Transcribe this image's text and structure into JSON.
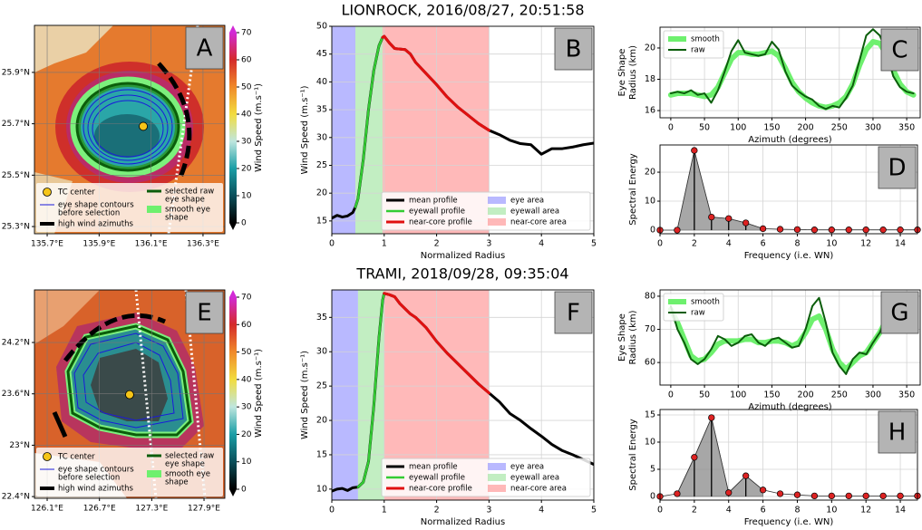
{
  "chart_data": [
    {
      "type": "map",
      "panel_label": "A",
      "xlim": [
        135.651,
        136.384
      ],
      "ylim": [
        25.272,
        26.083
      ],
      "xticks": [
        {
          "value": 135.7,
          "label": "135.7°E"
        },
        {
          "value": 135.9,
          "label": "135.9°E"
        },
        {
          "value": 136.1,
          "label": "136.1°E"
        },
        {
          "value": 136.3,
          "label": "136.3°E"
        }
      ],
      "yticks": [
        {
          "value": 25.3,
          "label": "25.3°N"
        },
        {
          "value": 25.5,
          "label": "25.5°N"
        },
        {
          "value": 25.7,
          "label": "25.7°N"
        },
        {
          "value": 25.9,
          "label": "25.9°N"
        }
      ],
      "grid": true,
      "tc_center": [
        136.07,
        25.69
      ],
      "colorbar": {
        "label": "Wind Speed (m.s⁻¹)",
        "lim": [
          0,
          70
        ],
        "ticks": [
          0,
          10,
          20,
          30,
          40,
          50,
          60,
          70
        ],
        "colors": [
          "#000000",
          "#0b4f5a",
          "#1a9ea6",
          "#bfe6de",
          "#f2dc3e",
          "#f08a2a",
          "#d42a2a",
          "#d22ad6"
        ]
      },
      "legend": [
        {
          "lines": [
            "TC center"
          ],
          "symbol": "circle",
          "color": "#f5c518"
        },
        {
          "lines": [
            "eye shape contours",
            "before selection"
          ],
          "symbol": "thin",
          "color": "#1a1adb"
        },
        {
          "lines": [
            "high wind azimuths"
          ],
          "symbol": "thick",
          "color": "#000000"
        },
        {
          "lines": [
            "selected raw",
            "eye shape"
          ],
          "symbol": "line",
          "color": "#0b5d0b"
        },
        {
          "lines": [
            "smooth eye",
            "shape"
          ],
          "symbol": "band",
          "color": "#6ef06e"
        }
      ]
    },
    {
      "type": "line",
      "panel_label": "B",
      "title": "LIONROCK, 2016/08/27, 20:51:58",
      "xlabel": "Normalized Radius",
      "ylabel": "Wind Speed (m.s⁻¹)",
      "xlim": [
        0,
        5
      ],
      "ylim": [
        12.7,
        50
      ],
      "xticks": [
        0,
        1,
        2,
        3,
        4,
        5
      ],
      "yticks": [
        15,
        20,
        25,
        30,
        35,
        40,
        45,
        50
      ],
      "grid": true,
      "legend": "lower right",
      "areas": [
        {
          "name": "eye area",
          "color": "#8080ff",
          "range": [
            0,
            0.45
          ]
        },
        {
          "name": "eyewall area",
          "color": "#90e090",
          "range": [
            0.45,
            0.97
          ]
        },
        {
          "name": "near-core area",
          "color": "#ff8080",
          "range": [
            0.97,
            3.0
          ]
        }
      ],
      "series": [
        {
          "name": "mean profile",
          "color": "#000000",
          "linewidth": 3,
          "x": [
            0,
            0.1,
            0.2,
            0.3,
            0.4,
            0.45,
            0.5,
            0.6,
            0.7,
            0.8,
            0.9,
            0.97,
            1.0,
            1.1,
            1.2,
            1.4,
            1.5,
            1.6,
            1.8,
            2.0,
            2.2,
            2.4,
            2.6,
            2.8,
            3.0,
            3.2,
            3.4,
            3.6,
            3.8,
            4.0,
            4.2,
            4.4,
            4.6,
            4.8,
            5.0
          ],
          "values": [
            15.5,
            16,
            15.7,
            15.9,
            16.5,
            17.5,
            19,
            26,
            35,
            42,
            46.5,
            48,
            48.2,
            47,
            46,
            45.8,
            45,
            43.5,
            41.5,
            39.5,
            37.3,
            35.5,
            34,
            32.5,
            31.3,
            30.5,
            29.5,
            28.9,
            28.7,
            27,
            28,
            28,
            28.3,
            28.7,
            29
          ]
        },
        {
          "name": "eyewall profile",
          "color": "#33cc33",
          "linewidth": 2.5,
          "x": [
            0.45,
            0.5,
            0.6,
            0.7,
            0.8,
            0.9,
            0.97
          ],
          "values": [
            17.5,
            19,
            26,
            35,
            42,
            46.5,
            48
          ]
        },
        {
          "name": "near-core profile",
          "color": "#e01010",
          "linewidth": 3,
          "x": [
            0.97,
            1.0,
            1.1,
            1.2,
            1.4,
            1.5,
            1.6,
            1.8,
            2.0,
            2.2,
            2.4,
            2.6,
            2.8,
            3.0
          ],
          "values": [
            48,
            48.2,
            47,
            46,
            45.8,
            45,
            43.5,
            41.5,
            39.5,
            37.3,
            35.5,
            34,
            32.5,
            31.3
          ]
        }
      ]
    },
    {
      "type": "line",
      "panel_label": "C",
      "xlabel": "Azimuth (degrees)",
      "ylabel": [
        "Eye Shape",
        "Radius (km)"
      ],
      "xlim": [
        -16,
        370
      ],
      "ylim": [
        15.54,
        21.33
      ],
      "xticks": [
        0,
        50,
        100,
        150,
        200,
        250,
        300,
        350
      ],
      "yticks": [
        16,
        18,
        20
      ],
      "grid": true,
      "legend": "upper left",
      "x": [
        0,
        10,
        20,
        30,
        40,
        50,
        60,
        70,
        80,
        90,
        100,
        110,
        120,
        130,
        140,
        150,
        160,
        170,
        180,
        190,
        200,
        210,
        220,
        230,
        240,
        250,
        260,
        270,
        280,
        290,
        300,
        310,
        320,
        330,
        340,
        350,
        360
      ],
      "series": [
        {
          "name": "smooth",
          "color": "#6ef06e",
          "linewidth": 6,
          "values": [
            17,
            17.1,
            17.1,
            17.1,
            17,
            16.9,
            17,
            17.5,
            18.4,
            19.3,
            19.7,
            19.7,
            19.6,
            19.6,
            19.7,
            19.8,
            19.5,
            18.7,
            17.8,
            17.2,
            16.8,
            16.5,
            16.3,
            16.2,
            16.3,
            16.5,
            16.9,
            17.7,
            18.9,
            19.9,
            20.4,
            20.3,
            19.6,
            18.6,
            17.7,
            17.2,
            17.0
          ]
        },
        {
          "name": "raw",
          "color": "#0b5d0b",
          "linewidth": 2,
          "values": [
            17.1,
            17.2,
            17.1,
            17.3,
            17.0,
            17.1,
            16.5,
            17.3,
            18.5,
            19.8,
            20.5,
            19.7,
            19.6,
            19.5,
            19.6,
            20.4,
            19.9,
            18.5,
            17.6,
            17.2,
            16.9,
            16.7,
            16.3,
            16.1,
            16.3,
            16.2,
            16.8,
            17.6,
            19.2,
            20.8,
            21.2,
            20.8,
            19.8,
            18.2,
            17.5,
            17.2,
            17.1
          ]
        }
      ]
    },
    {
      "type": "stem",
      "panel_label": "D",
      "xlabel": "Frequency (i.e. WN)",
      "ylabel": "Spectral Energy",
      "xlim": [
        0,
        15
      ],
      "ylim": [
        -1.25,
        29.4
      ],
      "xticks": [
        0,
        2,
        4,
        6,
        8,
        10,
        12,
        14
      ],
      "yticks": [
        0,
        10,
        20
      ],
      "grid": true,
      "fill_between": [
        1,
        6
      ],
      "color": "#dd2222",
      "x": [
        0,
        1,
        2,
        3,
        4,
        5,
        6,
        7,
        8,
        9,
        10,
        11,
        12,
        13,
        14,
        15
      ],
      "values": [
        0,
        0,
        27.5,
        4.5,
        4,
        2.5,
        0.5,
        0.3,
        0.2,
        0.1,
        0.1,
        0.1,
        0.1,
        0.1,
        0.1,
        0.1
      ]
    },
    {
      "type": "map",
      "panel_label": "E",
      "xlim": [
        125.954,
        128.139
      ],
      "ylim": [
        22.38,
        24.814
      ],
      "xticks": [
        {
          "value": 126.1,
          "label": "126.1°E"
        },
        {
          "value": 126.7,
          "label": "126.7°E"
        },
        {
          "value": 127.3,
          "label": "127.3°E"
        },
        {
          "value": 127.9,
          "label": "127.9°E"
        }
      ],
      "yticks": [
        {
          "value": 22.4,
          "label": "22.4°N"
        },
        {
          "value": 23.0,
          "label": "23°N"
        },
        {
          "value": 23.6,
          "label": "23.6°N"
        },
        {
          "value": 24.2,
          "label": "24.2°N"
        }
      ],
      "grid": true,
      "tc_center": [
        127.046,
        23.59
      ],
      "colorbar": {
        "label": "Wind Speed (m.s⁻¹)",
        "lim": [
          0,
          70
        ],
        "ticks": [
          0,
          10,
          20,
          30,
          40,
          50,
          60,
          70
        ],
        "colors": [
          "#000000",
          "#0b4f5a",
          "#1a9ea6",
          "#bfe6de",
          "#f2dc3e",
          "#f08a2a",
          "#d42a2a",
          "#d22ad6"
        ]
      },
      "legend": [
        {
          "lines": [
            "TC center"
          ],
          "symbol": "circle",
          "color": "#f5c518"
        },
        {
          "lines": [
            "eye shape contours",
            "before selection"
          ],
          "symbol": "thin",
          "color": "#1a1adb"
        },
        {
          "lines": [
            "high wind azimuths"
          ],
          "symbol": "thick",
          "color": "#000000"
        },
        {
          "lines": [
            "selected raw",
            " eye shape"
          ],
          "symbol": "line",
          "color": "#0b5d0b"
        },
        {
          "lines": [
            "smooth eye",
            "shape"
          ],
          "symbol": "band",
          "color": "#6ef06e"
        }
      ]
    },
    {
      "type": "line",
      "panel_label": "F",
      "title": "TRAMI, 2018/09/28, 09:35:04",
      "xlabel": "Normalized Radius",
      "ylabel": "Wind Speed (m.s⁻¹)",
      "xlim": [
        0,
        5
      ],
      "ylim": [
        8.4,
        39
      ],
      "xticks": [
        0,
        1,
        2,
        3,
        4,
        5
      ],
      "yticks": [
        10,
        15,
        20,
        25,
        30,
        35
      ],
      "grid": true,
      "legend": "lower right",
      "areas": [
        {
          "name": "eye area",
          "color": "#8080ff",
          "range": [
            0,
            0.5
          ]
        },
        {
          "name": "eyewall area",
          "color": "#90e090",
          "range": [
            0.5,
            1.0
          ]
        },
        {
          "name": "near-core area",
          "color": "#ff8080",
          "range": [
            1.0,
            3.0
          ]
        }
      ],
      "series": [
        {
          "name": "mean profile",
          "color": "#000000",
          "linewidth": 3,
          "x": [
            0,
            0.1,
            0.2,
            0.3,
            0.4,
            0.5,
            0.6,
            0.7,
            0.8,
            0.9,
            0.97,
            1.0,
            1.1,
            1.2,
            1.3,
            1.5,
            1.6,
            1.8,
            2.0,
            2.2,
            2.4,
            2.6,
            2.8,
            3.0,
            3.2,
            3.4,
            3.6,
            3.8,
            4.0,
            4.2,
            4.4,
            4.6,
            4.8,
            5.0
          ],
          "values": [
            9.7,
            10,
            10.1,
            9.8,
            10.2,
            10.3,
            11,
            14,
            22,
            32,
            37.5,
            38.5,
            38.3,
            38,
            37,
            35.5,
            35,
            33.5,
            31.5,
            29.8,
            28.3,
            26.8,
            25.3,
            24,
            22.7,
            21,
            20,
            18.8,
            17.7,
            16.5,
            15.6,
            15,
            14.3,
            13.6
          ]
        },
        {
          "name": "eyewall profile",
          "color": "#33cc33",
          "linewidth": 2.5,
          "x": [
            0.5,
            0.6,
            0.7,
            0.8,
            0.9,
            0.97,
            1.0
          ],
          "values": [
            10.3,
            11,
            14,
            22,
            32,
            37.5,
            38.5
          ]
        },
        {
          "name": "near-core profile",
          "color": "#e01010",
          "linewidth": 3,
          "x": [
            1.0,
            1.1,
            1.2,
            1.3,
            1.5,
            1.6,
            1.8,
            2.0,
            2.2,
            2.4,
            2.6,
            2.8,
            3.0
          ],
          "values": [
            38.5,
            38.3,
            38,
            37,
            35.5,
            35,
            33.5,
            31.5,
            29.8,
            28.3,
            26.8,
            25.3,
            24
          ]
        }
      ]
    },
    {
      "type": "line",
      "panel_label": "G",
      "xlabel": "Azimuth (degrees)",
      "ylabel": [
        "Eye Shape",
        "Radius (km)"
      ],
      "xlim": [
        -16,
        370
      ],
      "ylim": [
        53.2,
        81.9
      ],
      "xticks": [
        0,
        50,
        100,
        150,
        200,
        250,
        300,
        350
      ],
      "yticks": [
        60,
        70,
        80
      ],
      "grid": true,
      "legend": "upper left",
      "x": [
        0,
        10,
        20,
        30,
        40,
        50,
        60,
        70,
        80,
        90,
        100,
        110,
        120,
        130,
        140,
        150,
        160,
        170,
        180,
        190,
        200,
        210,
        220,
        230,
        240,
        250,
        260,
        270,
        280,
        290,
        300,
        310,
        320,
        330,
        340,
        350,
        360
      ],
      "series": [
        {
          "name": "smooth",
          "color": "#6ef06e",
          "linewidth": 6,
          "values": [
            76,
            72,
            67,
            62,
            60.5,
            61,
            63,
            65.5,
            66.5,
            66.5,
            66.5,
            67,
            67,
            66,
            66,
            66.5,
            66.5,
            66,
            65,
            66,
            69,
            73,
            74,
            70,
            64,
            60,
            58,
            60,
            62,
            63,
            66,
            69,
            73,
            76,
            77.5,
            78,
            78
          ]
        },
        {
          "name": "raw",
          "color": "#0b5d0b",
          "linewidth": 2,
          "values": [
            77,
            70,
            66,
            61,
            59.5,
            61,
            64,
            68,
            67,
            65,
            66,
            68,
            68.5,
            66,
            65,
            67,
            67.5,
            66,
            64.5,
            65,
            70,
            77,
            79.5,
            72,
            63,
            59,
            56.5,
            61,
            63,
            62.5,
            66,
            69,
            74,
            78,
            79,
            78.5,
            79
          ]
        }
      ]
    },
    {
      "type": "stem",
      "panel_label": "H",
      "xlabel": "Frequency (i.e. WN)",
      "ylabel": "Spectral Energy",
      "xlim": [
        0,
        15
      ],
      "ylim": [
        -0.67,
        16
      ],
      "xticks": [
        0,
        2,
        4,
        6,
        8,
        10,
        12,
        14
      ],
      "yticks": [
        0,
        5,
        10,
        15
      ],
      "grid": true,
      "fill_between": [
        1,
        6
      ],
      "color": "#dd2222",
      "x": [
        0,
        1,
        2,
        3,
        4,
        5,
        6,
        7,
        8,
        9,
        10,
        11,
        12,
        13,
        14,
        15
      ],
      "values": [
        0,
        0.5,
        7.2,
        14.5,
        0.7,
        3.8,
        1.2,
        0.5,
        0.3,
        0.1,
        0.1,
        0.1,
        0.1,
        0.1,
        0.1,
        0.1
      ]
    }
  ]
}
